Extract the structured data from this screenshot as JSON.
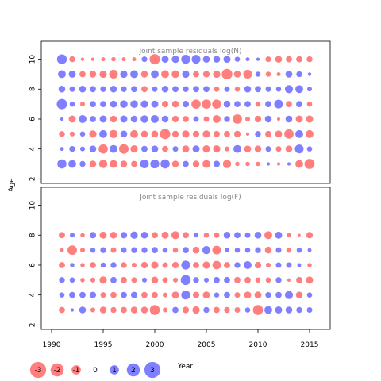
{
  "chart_data": [
    {
      "type": "scatter",
      "title": "Joint sample residuals log(N)",
      "ylabel": "Age",
      "xlabel": "Year",
      "x_range": [
        1989,
        2017
      ],
      "y_range": [
        1.7,
        11.2
      ],
      "y_ticks": [
        "2",
        "4",
        "6",
        "8",
        "10"
      ],
      "years": [
        1991,
        1992,
        1993,
        1994,
        1995,
        1996,
        1997,
        1998,
        1999,
        2000,
        2001,
        2002,
        2003,
        2004,
        2005,
        2006,
        2007,
        2008,
        2009,
        2010,
        2011,
        2012,
        2013,
        2014,
        2015
      ],
      "ages": [
        3,
        4,
        5,
        6,
        7,
        8,
        9,
        10
      ],
      "residuals": {
        "3": [
          2.2,
          1.6,
          0.9,
          -1.2,
          -1.8,
          -1.6,
          -1.2,
          -1.0,
          2.0,
          2.1,
          2.2,
          -1.2,
          1.0,
          -1.2,
          -1.6,
          1.1,
          -1.8,
          -0.5,
          -0.5,
          -0.5,
          0.3,
          -0.3,
          0.3,
          -1.6,
          -2.7
        ],
        "4": [
          0.4,
          0.9,
          0.6,
          1.2,
          -2.2,
          1.6,
          -2.4,
          -1.4,
          1.0,
          1.2,
          -1.0,
          0.8,
          -1.3,
          1.3,
          -1.4,
          -1.4,
          -0.6,
          1.6,
          -1.2,
          -1.2,
          0.8,
          -0.8,
          -1.2,
          2.0,
          0.7
        ],
        "5": [
          -0.9,
          -0.6,
          0.7,
          -1.4,
          1.6,
          -1.8,
          1.2,
          -1.6,
          -1.2,
          -1.2,
          -2.8,
          -1.1,
          -1.4,
          -1.1,
          -1.4,
          -1.0,
          -1.0,
          -1.1,
          -0.3,
          0.9,
          -1.0,
          -1.3,
          -2.3,
          1.6,
          -1.6
        ],
        "6": [
          0.3,
          -1.3,
          1.6,
          1.0,
          1.3,
          -1.2,
          1.3,
          1.2,
          1.5,
          1.6,
          1.2,
          -1.1,
          -1.0,
          0.8,
          -0.8,
          -1.6,
          0.9,
          -2.3,
          -0.6,
          -1.1,
          1.2,
          -0.3,
          1.2,
          -1.3,
          -1.3
        ],
        "7": [
          2.8,
          0.7,
          -0.6,
          1.0,
          1.0,
          1.2,
          1.5,
          1.5,
          1.4,
          1.3,
          -1.1,
          -1.2,
          1.1,
          -2.2,
          -2.2,
          -2.2,
          1.2,
          1.0,
          1.0,
          -0.7,
          1.0,
          2.0,
          -1.0,
          1.0,
          -0.7
        ],
        "8": [
          1.2,
          0.8,
          1.2,
          1.0,
          0.9,
          1.2,
          0.9,
          1.0,
          -1.0,
          0.8,
          1.2,
          1.0,
          0.9,
          1.0,
          1.0,
          -0.8,
          0.8,
          -0.7,
          1.2,
          1.0,
          0.8,
          0.7,
          1.7,
          1.6,
          0.6
        ],
        "9": [
          1.6,
          1.3,
          -1.0,
          -1.2,
          -1.4,
          -2.0,
          1.4,
          1.6,
          -1.2,
          1.6,
          -1.6,
          -1.5,
          1.4,
          -1.0,
          -1.1,
          -1.4,
          -2.9,
          -1.2,
          -2.0,
          0.7,
          -0.7,
          -0.4,
          1.2,
          0.9,
          0.3
        ],
        "10": [
          2.5,
          -0.9,
          -0.3,
          -0.3,
          -0.4,
          -0.5,
          -0.4,
          -0.4,
          0.8,
          -2.8,
          1.3,
          1.4,
          2.1,
          2.0,
          1.2,
          1.2,
          1.3,
          0.7,
          0.4,
          0.3,
          -0.8,
          -1.2,
          -1.0,
          -1.0,
          -0.9
        ]
      }
    },
    {
      "type": "scatter",
      "title": "Joint sample residuals log(F)",
      "ylabel": "Age",
      "xlabel": "Year",
      "x_range": [
        1989,
        2017
      ],
      "y_range": [
        1.7,
        11.2
      ],
      "x_ticks": [
        "1990",
        "1995",
        "2000",
        "2005",
        "2010",
        "2015"
      ],
      "y_ticks": [
        "2",
        "4",
        "6",
        "8",
        "10"
      ],
      "years": [
        1991,
        1992,
        1993,
        1994,
        1995,
        1996,
        1997,
        1998,
        1999,
        2000,
        2001,
        2002,
        2003,
        2004,
        2005,
        2006,
        2007,
        2008,
        2009,
        2010,
        2011,
        2012,
        2013,
        2014,
        2015
      ],
      "ages": [
        3,
        4,
        5,
        6,
        7,
        8
      ],
      "residuals": {
        "3": [
          -1.0,
          0.3,
          1.2,
          -0.6,
          -1.2,
          -0.9,
          -1.0,
          -1.2,
          -1.2,
          -2.6,
          -0.6,
          1.0,
          -1.1,
          -1.4,
          0.9,
          -1.0,
          -0.9,
          -0.8,
          0.7,
          -2.6,
          1.6,
          1.3,
          1.2,
          0.9,
          0.8
        ],
        "4": [
          0.7,
          1.0,
          1.0,
          1.1,
          -0.8,
          -1.0,
          1.0,
          1.1,
          -1.0,
          -1.0,
          -0.6,
          -1.3,
          2.1,
          -1.1,
          -1.3,
          0.7,
          1.0,
          -0.8,
          -1.3,
          -1.3,
          0.9,
          1.0,
          1.7,
          -1.2,
          0.7
        ],
        "5": [
          0.9,
          0.7,
          -0.5,
          -0.6,
          -1.4,
          1.0,
          -1.0,
          -0.8,
          0.6,
          -1.2,
          -0.8,
          -0.6,
          2.6,
          0.9,
          0.6,
          1.0,
          1.0,
          -1.0,
          -1.0,
          -0.7,
          -0.7,
          0.9,
          -0.3,
          -1.0,
          -1.3
        ],
        "6": [
          -1.0,
          0.5,
          -0.5,
          -1.0,
          0.7,
          0.9,
          -0.9,
          -0.6,
          -1.1,
          -1.4,
          -0.8,
          -1.1,
          2.1,
          -1.0,
          -1.4,
          -1.9,
          -1.0,
          0.9,
          1.6,
          -1.1,
          -0.6,
          0.8,
          0.8,
          0.4,
          -0.5
        ],
        "7": [
          -0.4,
          -2.3,
          -0.6,
          0.7,
          0.9,
          -0.8,
          0.8,
          0.9,
          0.9,
          1.0,
          0.7,
          -0.7,
          1.0,
          -1.2,
          1.7,
          -2.0,
          0.6,
          0.7,
          0.7,
          0.9,
          -1.2,
          0.8,
          -0.7,
          0.7,
          0.4
        ],
        "8": [
          -1.0,
          0.6,
          -0.5,
          1.1,
          -1.3,
          -1.2,
          1.1,
          1.4,
          1.2,
          -1.0,
          -1.3,
          -1.7,
          -1.0,
          0.6,
          -0.7,
          -0.8,
          1.2,
          1.0,
          0.8,
          1.2,
          -1.6,
          1.3,
          -0.5,
          -0.2,
          -1.1
        ]
      }
    }
  ],
  "legend": {
    "values": [
      -3,
      -2,
      -1,
      0,
      1,
      2,
      3
    ],
    "labels": [
      "-3",
      "-2",
      "-1",
      "0",
      "1",
      "2",
      "3"
    ]
  },
  "colors": {
    "negative": "#ff0000",
    "positive": "#0000ff",
    "title": "#888888"
  }
}
